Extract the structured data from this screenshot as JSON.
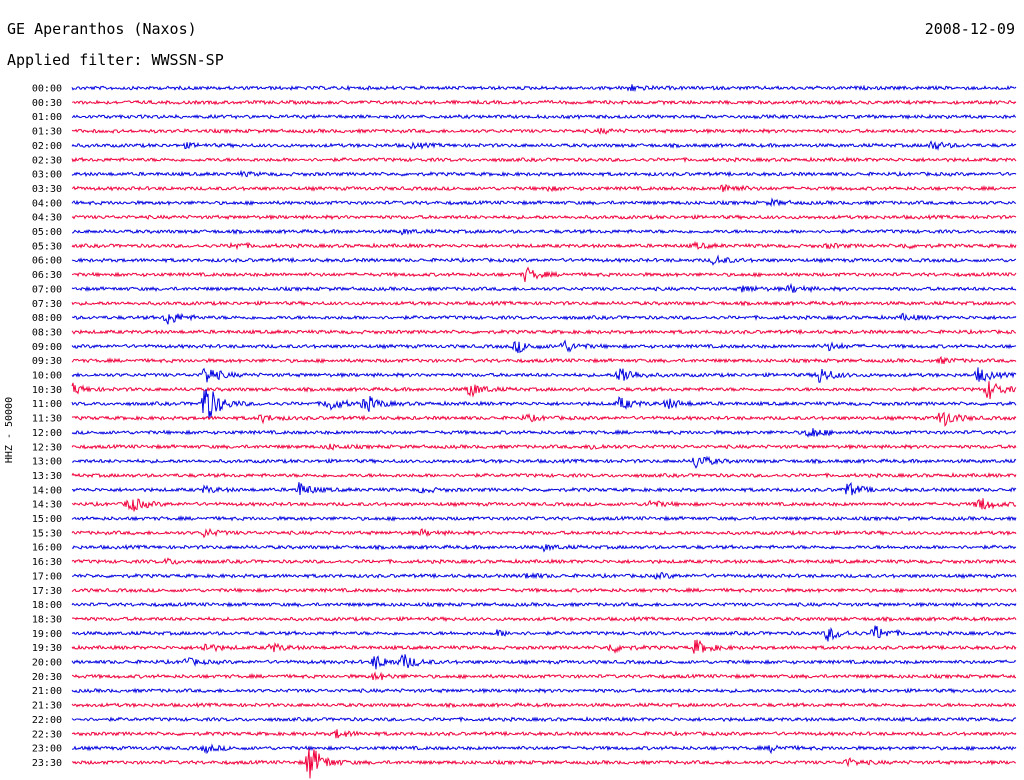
{
  "header": {
    "station": "GE Aperanthos (Naxos)",
    "date": "2008-12-09",
    "filter": "Applied filter: WWSSN-SP"
  },
  "chart_data": {
    "type": "line",
    "channel_label": "HHZ - 50000",
    "rows": [
      "00:00",
      "00:30",
      "01:00",
      "01:30",
      "02:00",
      "02:30",
      "03:00",
      "03:30",
      "04:00",
      "04:30",
      "05:00",
      "05:30",
      "06:00",
      "06:30",
      "07:00",
      "07:30",
      "08:00",
      "08:30",
      "09:00",
      "09:30",
      "10:00",
      "10:30",
      "11:00",
      "11:30",
      "12:00",
      "12:30",
      "13:00",
      "13:30",
      "14:00",
      "14:30",
      "15:00",
      "15:30",
      "16:00",
      "16:30",
      "17:00",
      "17:30",
      "18:00",
      "18:30",
      "19:00",
      "19:30",
      "20:00",
      "20:30",
      "21:00",
      "21:30",
      "22:00",
      "22:30",
      "23:00",
      "23:30"
    ],
    "colors": [
      "#0000e0",
      "#f0003c"
    ],
    "x_range_minutes": [
      0,
      30
    ],
    "events": [
      {
        "row": 0,
        "t": 0.59,
        "amp": 0.25
      },
      {
        "row": 3,
        "t": 0.56,
        "amp": 0.15
      },
      {
        "row": 4,
        "t": 0.12,
        "amp": 0.15
      },
      {
        "row": 4,
        "t": 0.36,
        "amp": 0.18
      },
      {
        "row": 4,
        "t": 0.91,
        "amp": 0.35
      },
      {
        "row": 6,
        "t": 0.18,
        "amp": 0.12
      },
      {
        "row": 7,
        "t": 0.5,
        "amp": 0.15
      },
      {
        "row": 7,
        "t": 0.69,
        "amp": 0.4
      },
      {
        "row": 8,
        "t": 0.74,
        "amp": 0.2
      },
      {
        "row": 10,
        "t": 0.35,
        "amp": 0.15
      },
      {
        "row": 11,
        "t": 0.17,
        "amp": 0.25
      },
      {
        "row": 11,
        "t": 0.66,
        "amp": 0.2
      },
      {
        "row": 11,
        "t": 0.8,
        "amp": 0.15
      },
      {
        "row": 11,
        "t": 0.88,
        "amp": 0.15
      },
      {
        "row": 12,
        "t": 0.68,
        "amp": 0.35
      },
      {
        "row": 13,
        "t": 0.48,
        "amp": 0.55
      },
      {
        "row": 14,
        "t": 0.71,
        "amp": 0.25
      },
      {
        "row": 14,
        "t": 0.76,
        "amp": 0.3
      },
      {
        "row": 16,
        "t": 0.1,
        "amp": 0.6
      },
      {
        "row": 16,
        "t": 0.88,
        "amp": 0.2
      },
      {
        "row": 18,
        "t": 0.47,
        "amp": 0.5
      },
      {
        "row": 18,
        "t": 0.52,
        "amp": 0.5
      },
      {
        "row": 18,
        "t": 0.8,
        "amp": 0.3
      },
      {
        "row": 19,
        "t": 0.92,
        "amp": 0.2
      },
      {
        "row": 20,
        "t": 0.14,
        "amp": 0.8
      },
      {
        "row": 20,
        "t": 0.58,
        "amp": 0.8
      },
      {
        "row": 20,
        "t": 0.79,
        "amp": 0.7
      },
      {
        "row": 20,
        "t": 0.96,
        "amp": 0.6
      },
      {
        "row": 21,
        "t": 0.0,
        "amp": 0.4
      },
      {
        "row": 21,
        "t": 0.42,
        "amp": 0.6
      },
      {
        "row": 21,
        "t": 0.97,
        "amp": 0.8
      },
      {
        "row": 22,
        "t": 0.14,
        "amp": 1.9
      },
      {
        "row": 22,
        "t": 0.27,
        "amp": 0.6
      },
      {
        "row": 22,
        "t": 0.31,
        "amp": 0.7
      },
      {
        "row": 22,
        "t": 0.58,
        "amp": 0.5
      },
      {
        "row": 22,
        "t": 0.63,
        "amp": 0.4
      },
      {
        "row": 23,
        "t": 0.2,
        "amp": 0.3
      },
      {
        "row": 23,
        "t": 0.48,
        "amp": 0.25
      },
      {
        "row": 23,
        "t": 0.92,
        "amp": 0.8
      },
      {
        "row": 24,
        "t": 0.78,
        "amp": 0.5
      },
      {
        "row": 25,
        "t": 0.27,
        "amp": 0.2
      },
      {
        "row": 25,
        "t": 0.55,
        "amp": 0.2
      },
      {
        "row": 26,
        "t": 0.66,
        "amp": 0.6
      },
      {
        "row": 28,
        "t": 0.14,
        "amp": 0.25
      },
      {
        "row": 28,
        "t": 0.24,
        "amp": 0.55
      },
      {
        "row": 28,
        "t": 0.37,
        "amp": 0.2
      },
      {
        "row": 28,
        "t": 0.82,
        "amp": 0.6
      },
      {
        "row": 29,
        "t": 0.06,
        "amp": 0.7
      },
      {
        "row": 29,
        "t": 0.61,
        "amp": 0.3
      },
      {
        "row": 29,
        "t": 0.96,
        "amp": 0.6
      },
      {
        "row": 31,
        "t": 0.14,
        "amp": 0.3
      },
      {
        "row": 31,
        "t": 0.37,
        "amp": 0.2
      },
      {
        "row": 32,
        "t": 0.5,
        "amp": 0.2
      },
      {
        "row": 33,
        "t": 0.1,
        "amp": 0.2
      },
      {
        "row": 34,
        "t": 0.48,
        "amp": 0.2
      },
      {
        "row": 34,
        "t": 0.62,
        "amp": 0.2
      },
      {
        "row": 38,
        "t": 0.45,
        "amp": 0.2
      },
      {
        "row": 38,
        "t": 0.8,
        "amp": 0.6
      },
      {
        "row": 38,
        "t": 0.85,
        "amp": 0.6
      },
      {
        "row": 39,
        "t": 0.14,
        "amp": 0.35
      },
      {
        "row": 39,
        "t": 0.21,
        "amp": 0.35
      },
      {
        "row": 39,
        "t": 0.57,
        "amp": 0.4
      },
      {
        "row": 39,
        "t": 0.66,
        "amp": 0.6
      },
      {
        "row": 40,
        "t": 0.12,
        "amp": 0.3
      },
      {
        "row": 40,
        "t": 0.32,
        "amp": 0.6
      },
      {
        "row": 40,
        "t": 0.35,
        "amp": 0.6
      },
      {
        "row": 41,
        "t": 0.32,
        "amp": 0.3
      },
      {
        "row": 45,
        "t": 0.28,
        "amp": 0.3
      },
      {
        "row": 46,
        "t": 0.14,
        "amp": 0.3
      },
      {
        "row": 46,
        "t": 0.74,
        "amp": 0.25
      },
      {
        "row": 47,
        "t": 0.25,
        "amp": 1.6
      },
      {
        "row": 47,
        "t": 0.82,
        "amp": 0.3
      }
    ]
  }
}
